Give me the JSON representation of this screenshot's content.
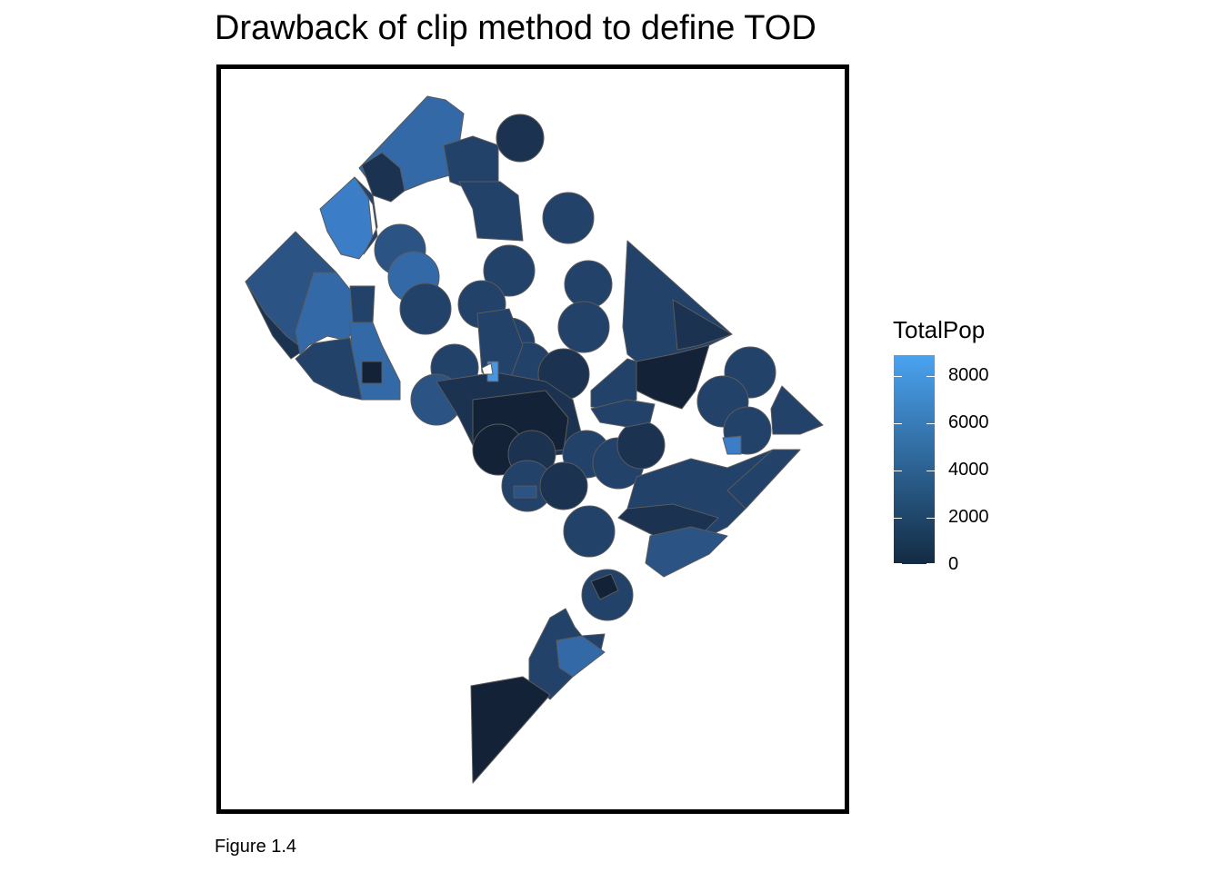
{
  "title": "Drawback of clip method to define TOD",
  "caption": "Figure 1.4",
  "legend": {
    "title": "TotalPop",
    "ticks": [
      "8000",
      "6000",
      "4000",
      "2000",
      "0"
    ],
    "gradient_top": "#4aa3f0",
    "gradient_bottom": "#132b43"
  },
  "colors": {
    "very_dark": "#132236",
    "dark": "#1b3250",
    "mid": "#22426a",
    "mid_light": "#2b5384",
    "light": "#3369a6",
    "lighter": "#3b7dc7",
    "lightest": "#4a95e2",
    "stroke": "#5a5a5a",
    "frame": "#000000"
  }
}
